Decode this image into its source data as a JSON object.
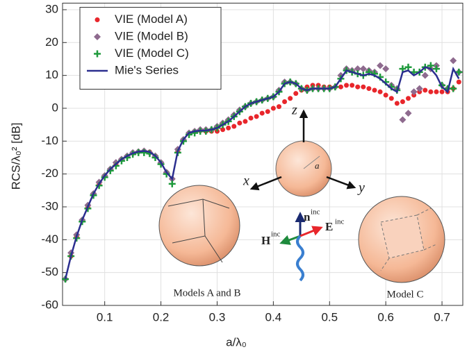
{
  "chart_data": {
    "type": "line",
    "xlabel": "a/λ₀",
    "ylabel": "RCS/λ₀² [dB]",
    "xlim": [
      0.025,
      0.737
    ],
    "ylim": [
      -60,
      32
    ],
    "xticks": [
      0.1,
      0.2,
      0.3,
      0.4,
      0.5,
      0.6,
      0.7
    ],
    "yticks": [
      -60,
      -50,
      -40,
      -30,
      -20,
      -10,
      0,
      10,
      20,
      30
    ],
    "grid": true,
    "legend": "upper left",
    "x": [
      0.03,
      0.04,
      0.05,
      0.06,
      0.07,
      0.08,
      0.09,
      0.1,
      0.11,
      0.12,
      0.13,
      0.14,
      0.15,
      0.16,
      0.17,
      0.18,
      0.19,
      0.2,
      0.21,
      0.22,
      0.23,
      0.24,
      0.25,
      0.26,
      0.27,
      0.28,
      0.29,
      0.3,
      0.31,
      0.32,
      0.33,
      0.34,
      0.35,
      0.36,
      0.37,
      0.38,
      0.39,
      0.4,
      0.41,
      0.42,
      0.43,
      0.44,
      0.45,
      0.46,
      0.47,
      0.48,
      0.49,
      0.5,
      0.51,
      0.52,
      0.53,
      0.54,
      0.55,
      0.56,
      0.57,
      0.58,
      0.59,
      0.6,
      0.61,
      0.62,
      0.63,
      0.64,
      0.65,
      0.66,
      0.67,
      0.68,
      0.69,
      0.7,
      0.71,
      0.72,
      0.73
    ],
    "series": [
      {
        "name": "VIE (Model A)",
        "color": "#e8262b",
        "marker": "circle",
        "values": [
          -52,
          -45,
          -39,
          -34,
          -30,
          -26,
          -23,
          -20.5,
          -18.5,
          -17,
          -15.5,
          -14.5,
          -13.7,
          -13.2,
          -13,
          -13.3,
          -14.5,
          -16.5,
          -19.5,
          -21.5,
          -13,
          -9.5,
          -7.5,
          -7,
          -6.8,
          -7,
          -7,
          -7,
          -6.5,
          -6,
          -5.5,
          -4.5,
          -4,
          -3,
          -2.5,
          -1.5,
          -1,
          0,
          0.5,
          2,
          3,
          4.5,
          5.5,
          6.5,
          7,
          7,
          6.5,
          6.5,
          6.5,
          6.5,
          7,
          7,
          6.5,
          6.5,
          6,
          5.5,
          5,
          4,
          3,
          1.5,
          2,
          3,
          4,
          5,
          5.5,
          5,
          5,
          5,
          5,
          6,
          8
        ]
      },
      {
        "name": "VIE (Model B)",
        "color": "#8e6a8e",
        "marker": "diamond",
        "values": [
          -52,
          -44,
          -38.5,
          -34,
          -29.5,
          -26,
          -22.5,
          -20.5,
          -18.5,
          -16.5,
          -15.5,
          -14.5,
          -13.5,
          -13.2,
          -13,
          -13.5,
          -14.5,
          -16.5,
          -19.5,
          -21.5,
          -12.5,
          -9.5,
          -7.5,
          -7,
          -6.5,
          -6.5,
          -6.5,
          -5.5,
          -4.5,
          -3.5,
          -2,
          -0.5,
          0.5,
          1.5,
          2,
          2.5,
          3,
          3.5,
          5.5,
          8,
          8,
          7.5,
          6,
          5.5,
          6,
          6,
          6,
          6,
          6.5,
          10,
          12,
          11.5,
          12,
          12,
          11.5,
          11,
          13,
          12,
          7,
          6,
          -3.5,
          -1.5,
          5,
          6,
          10,
          12,
          13,
          7,
          6,
          14.5,
          11
        ]
      },
      {
        "name": "VIE (Model C)",
        "color": "#1e9a3c",
        "marker": "plus",
        "values": [
          -52,
          -45,
          -39.5,
          -34.5,
          -30.5,
          -26.5,
          -23.5,
          -21,
          -19,
          -17.5,
          -16,
          -15,
          -14,
          -13.5,
          -13.5,
          -13.8,
          -15,
          -17,
          -20,
          -23,
          -13.5,
          -10,
          -8,
          -7.5,
          -7,
          -7,
          -6.5,
          -6,
          -5,
          -4,
          -2.5,
          -1,
          0.5,
          1.5,
          2,
          2.5,
          3,
          3.5,
          5,
          7.5,
          8,
          7.5,
          6,
          5.5,
          6,
          6,
          6,
          6,
          6.5,
          9,
          11.5,
          11,
          10.5,
          10,
          11,
          10.5,
          9.5,
          8,
          6.5,
          5.5,
          12,
          12.5,
          11,
          11,
          12.5,
          13,
          12,
          7,
          6,
          6,
          11
        ]
      },
      {
        "name": "Mie's Series",
        "color": "#2b2e8f",
        "marker": "line",
        "values": [
          -52,
          -45,
          -39,
          -34,
          -30,
          -26,
          -23,
          -20.5,
          -18.5,
          -17,
          -15.5,
          -14.5,
          -13.7,
          -13.2,
          -13,
          -13.3,
          -14.5,
          -16.5,
          -19.5,
          -21.5,
          -13,
          -9.5,
          -7.5,
          -7,
          -6.8,
          -6.8,
          -6.5,
          -6,
          -5,
          -4,
          -2.5,
          -1,
          0.5,
          1.5,
          2,
          2.5,
          3,
          3.5,
          5,
          7.5,
          8,
          7.5,
          6,
          5.5,
          6,
          6,
          6,
          6,
          6.5,
          9,
          11.5,
          11,
          10.5,
          10,
          10.5,
          10,
          9,
          7.5,
          6,
          5,
          11,
          11.5,
          10,
          11,
          12.5,
          12,
          10,
          6.5,
          5,
          12,
          9
        ]
      }
    ]
  },
  "inset": {
    "models_ab": "Models A and B",
    "model_c": "Model C",
    "x_axis": "x",
    "y_axis": "y",
    "z_axis": "z",
    "radius": "a",
    "n": "n",
    "n_sup": "inc",
    "h": "H",
    "h_sup": "inc",
    "e": "E",
    "e_sup": "inc"
  }
}
